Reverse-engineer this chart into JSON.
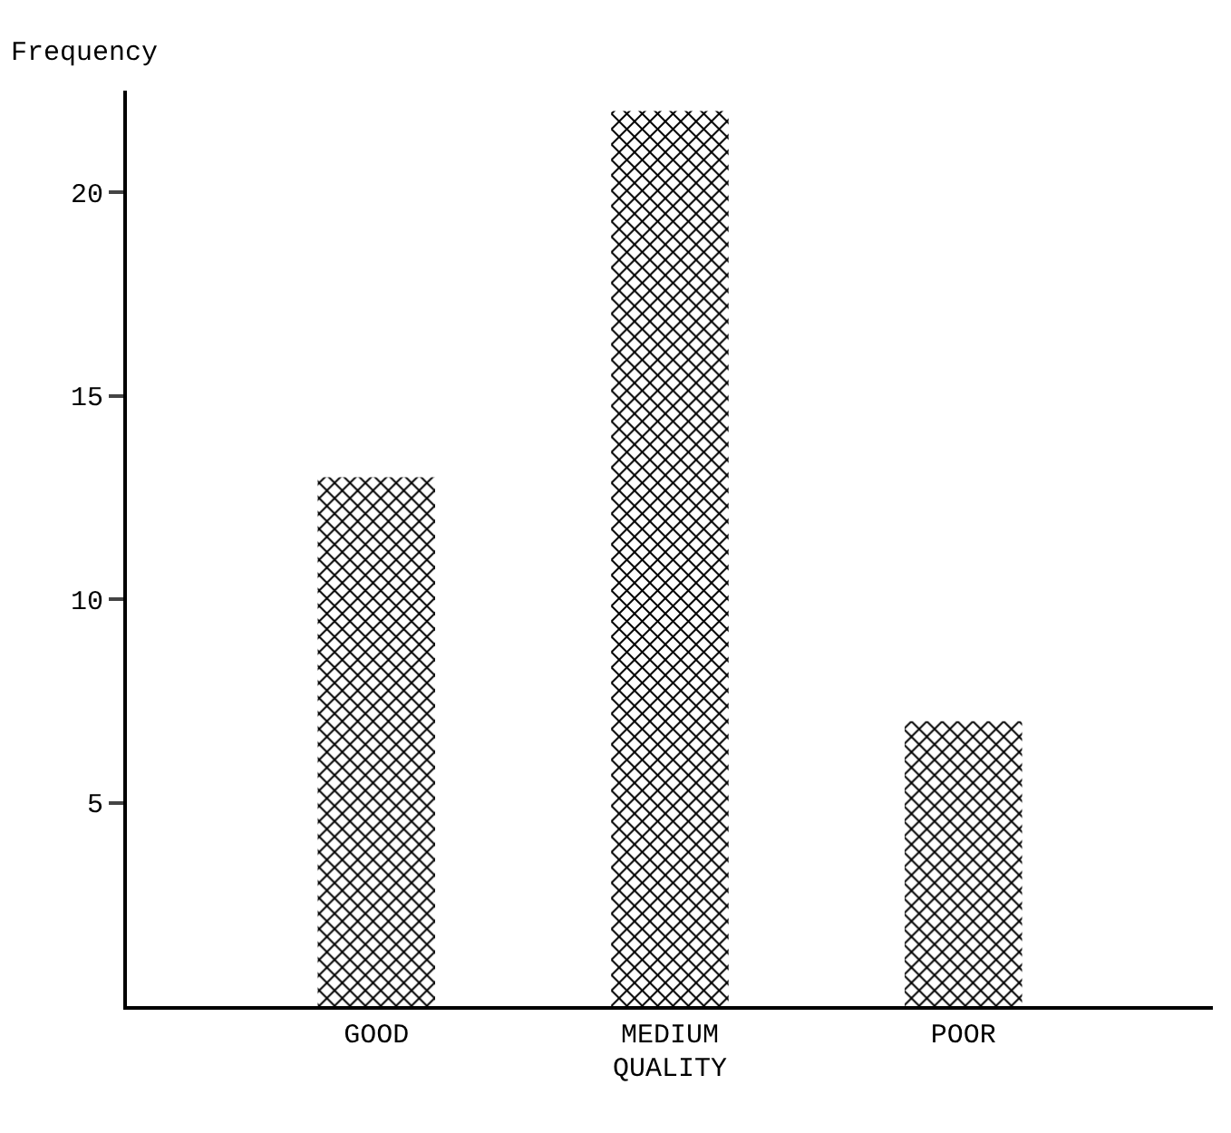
{
  "chart_data": {
    "type": "bar",
    "categories": [
      "GOOD",
      "MEDIUM",
      "POOR"
    ],
    "values": [
      13,
      22,
      7
    ],
    "color": "#000000",
    "xlabel": "QUALITY",
    "ylabel": "Frequency",
    "ylim": [
      0,
      22.5
    ],
    "yticks": [
      5,
      10,
      15,
      20
    ],
    "grid": false
  }
}
